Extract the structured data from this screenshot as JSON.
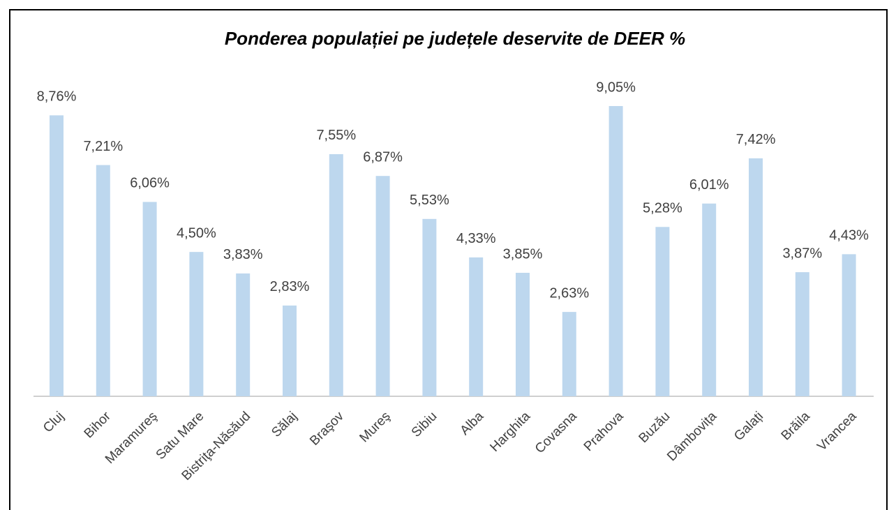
{
  "chart_data": {
    "type": "bar",
    "title": "Ponderea populației pe județele deservite de DEER %",
    "categories": [
      "Cluj",
      "Bihor",
      "Maramureş",
      "Satu Mare",
      "Bistriţa-Năsăud",
      "Sălaj",
      "Braşov",
      "Mureş",
      "Sibiu",
      "Alba",
      "Harghita",
      "Covasna",
      "Prahova",
      "Buzău",
      "Dâmbovița",
      "Galați",
      "Brăila",
      "Vrancea"
    ],
    "values": [
      8.76,
      7.21,
      6.06,
      4.5,
      3.83,
      2.83,
      7.55,
      6.87,
      5.53,
      4.33,
      3.85,
      2.63,
      9.05,
      5.28,
      6.01,
      7.42,
      3.87,
      4.43
    ],
    "value_labels": [
      "8,76%",
      "7,21%",
      "6,06%",
      "4,50%",
      "3,83%",
      "2,83%",
      "7,55%",
      "6,87%",
      "5,53%",
      "4,33%",
      "3,85%",
      "2,63%",
      "9,05%",
      "5,28%",
      "6,01%",
      "7,42%",
      "3,87%",
      "4,43%"
    ],
    "color": "#bdd7ee"
  }
}
